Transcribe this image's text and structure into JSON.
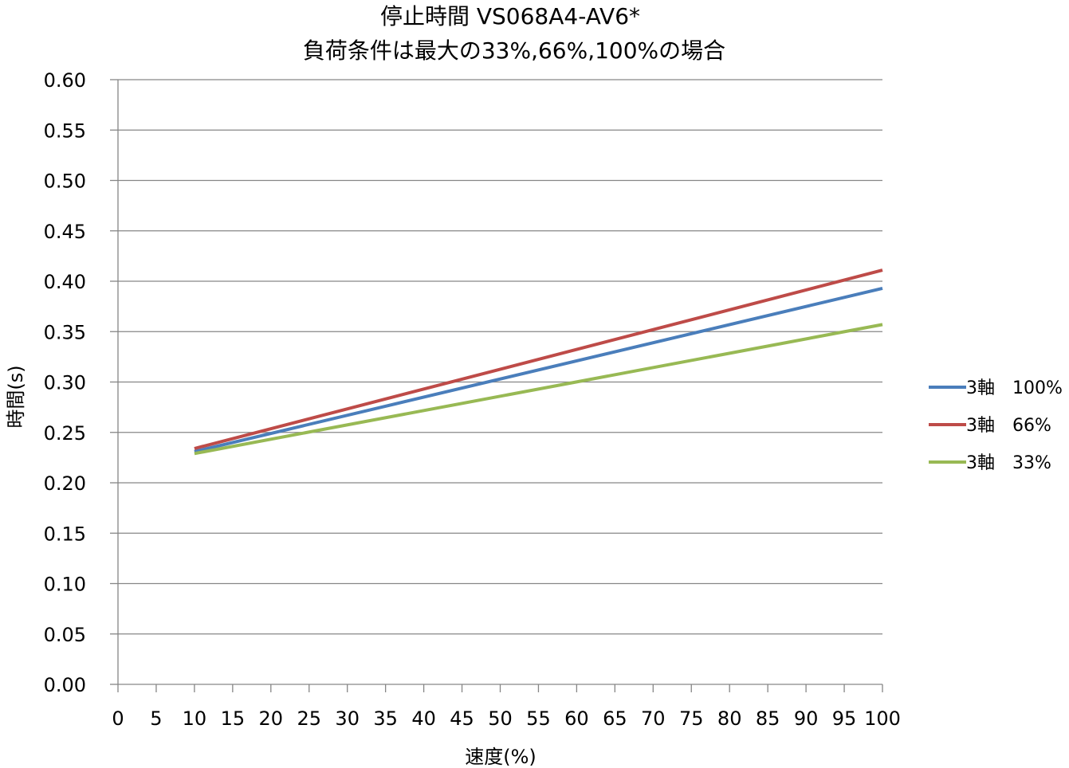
{
  "chart_data": {
    "type": "line",
    "title_lines": [
      "停止時間 VS068A4-AV6*",
      "負荷条件は最大の33%,66%,100%の場合"
    ],
    "xlabel": "速度(%)",
    "ylabel": "時間(s)",
    "xlim": [
      0,
      100
    ],
    "ylim": [
      0,
      0.6
    ],
    "x_ticks": [
      0,
      5,
      10,
      15,
      20,
      25,
      30,
      35,
      40,
      45,
      50,
      55,
      60,
      65,
      70,
      75,
      80,
      85,
      90,
      95,
      100
    ],
    "x_tick_labels": [
      "0",
      "5",
      "10",
      "15",
      "20",
      "25",
      "30",
      "35",
      "40",
      "45",
      "50",
      "55",
      "60",
      "65",
      "70",
      "75",
      "80",
      "85",
      "90",
      "95",
      "100"
    ],
    "y_ticks": [
      0,
      0.05,
      0.1,
      0.15,
      0.2,
      0.25,
      0.3,
      0.35,
      0.4,
      0.45,
      0.5,
      0.55,
      0.6
    ],
    "y_tick_labels": [
      "0.00",
      "0.05",
      "0.10",
      "0.15",
      "0.20",
      "0.25",
      "0.30",
      "0.35",
      "0.40",
      "0.45",
      "0.50",
      "0.55",
      "0.60"
    ],
    "grid": "horizontal",
    "legend_position": "right",
    "series": [
      {
        "name": "3軸　100%",
        "color": "#4a7ebb",
        "x": [
          10,
          100
        ],
        "y": [
          0.231,
          0.393
        ]
      },
      {
        "name": "3軸　66%",
        "color": "#be4b48",
        "x": [
          10,
          100
        ],
        "y": [
          0.234,
          0.411
        ]
      },
      {
        "name": "3軸　33%",
        "color": "#98b954",
        "x": [
          10,
          100
        ],
        "y": [
          0.229,
          0.357
        ]
      }
    ]
  }
}
